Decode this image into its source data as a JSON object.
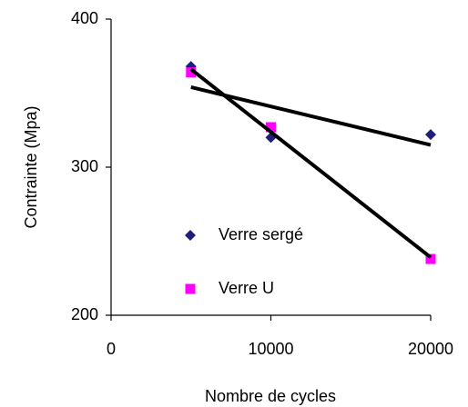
{
  "chart_data": {
    "type": "scatter",
    "xlabel": "Nombre de cycles",
    "ylabel": "Contrainte (Mpa)",
    "xlim": [
      0,
      20000
    ],
    "xticks": [
      0,
      10000,
      20000
    ],
    "ylim": [
      200,
      400
    ],
    "yticks": [
      200,
      300,
      400
    ],
    "grid": false,
    "trendline": "linear",
    "series": [
      {
        "name": "Verre sergé",
        "color": "#1f1f7a",
        "marker": "diamond",
        "x": [
          5000,
          10000,
          20000
        ],
        "values": [
          368,
          320,
          322
        ]
      },
      {
        "name": "Verre U",
        "color": "#ff00ff",
        "marker": "square",
        "x": [
          5000,
          10000,
          20000
        ],
        "values": [
          364,
          327,
          238
        ]
      }
    ]
  }
}
